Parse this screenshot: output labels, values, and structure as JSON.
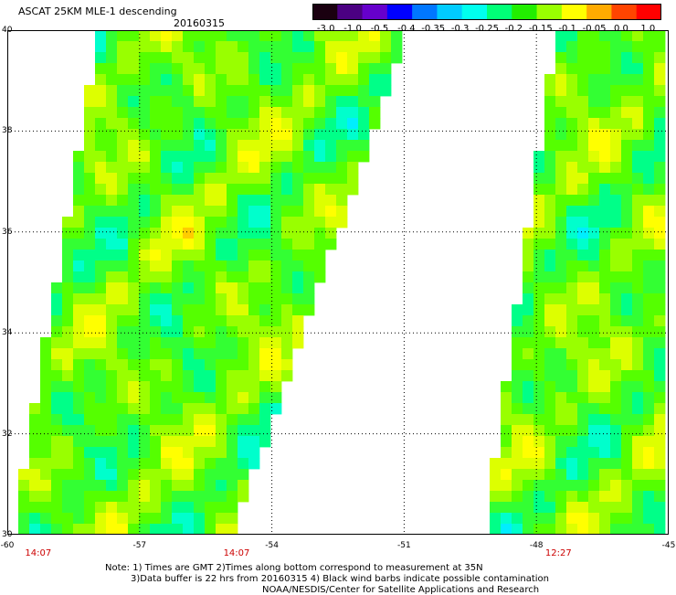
{
  "header": {
    "title": "ASCAT 25KM MLE-1 descending",
    "date": "20160315"
  },
  "colorbar": {
    "labels": [
      "-3.0",
      "-1.0",
      "-0.5",
      "-0.4",
      "-0.35",
      "-0.3",
      "-0.25",
      "-0.2",
      "-0.15",
      "-0.1",
      "-0.05",
      "0.0",
      "1.0"
    ],
    "colors": [
      "#1a0010",
      "#4b0082",
      "#6600cc",
      "#0000ff",
      "#0077ff",
      "#00ccff",
      "#00ffee",
      "#00ff77",
      "#22ee00",
      "#99ff00",
      "#ffff00",
      "#ffaa00",
      "#ff4400",
      "#ff0000"
    ]
  },
  "map": {
    "lat_range": [
      30,
      40
    ],
    "lon_range": [
      -60,
      -45
    ],
    "lat_ticks": [
      "40",
      "38",
      "36",
      "34",
      "32",
      "30"
    ],
    "lon_ticks": [
      "-60",
      "-57",
      "-54",
      "-51",
      "-48",
      "-45"
    ],
    "times": [
      {
        "label": "14:07",
        "lon": -59.3
      },
      {
        "label": "14:07",
        "lon": -54.8
      },
      {
        "label": "12:27",
        "lon": -47.5
      }
    ],
    "background": "#ffffff"
  },
  "notes": {
    "line1": "Note: 1) Times are GMT 2)Times along bottom correspond to measurement at 35N",
    "line2": "3)Data buffer is 22 hrs from 20160315 4) Black wind barbs indicate possible contamination",
    "line3": "NOAA/NESDIS/Center for Satellite Applications and Research"
  }
}
